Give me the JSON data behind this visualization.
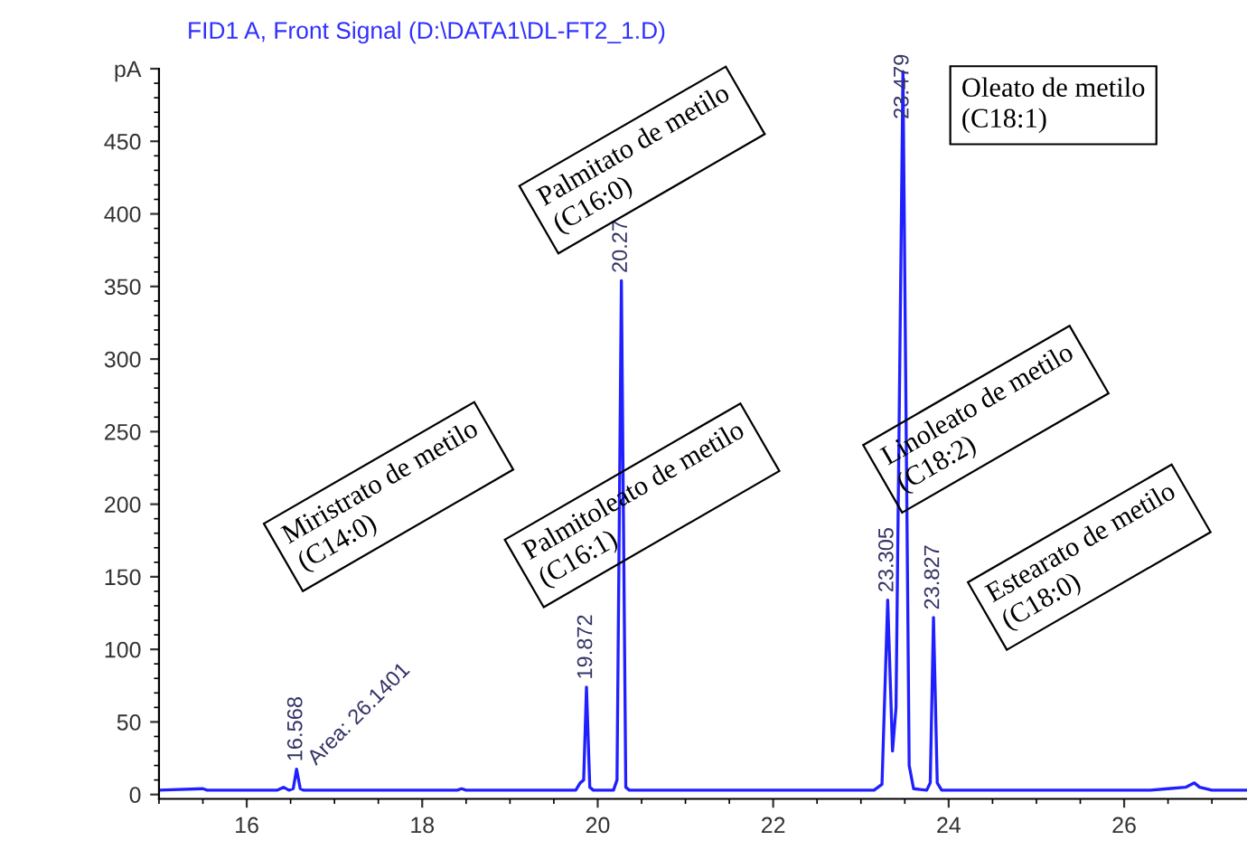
{
  "chart_data": {
    "type": "line",
    "title": "FID1 A, Front Signal (D:\\DATA1\\DL-FT2_1.D)",
    "xlim": [
      15,
      27.4
    ],
    "ylim": [
      -3,
      500
    ],
    "xticks": [
      16,
      18,
      20,
      22,
      24,
      26
    ],
    "yticks": [
      0,
      50,
      100,
      150,
      200,
      250,
      300,
      350,
      400,
      450,
      {
        "value": 500,
        "label": "pA"
      }
    ],
    "grid": false,
    "marker": "none",
    "line_style": "solid",
    "series": [
      {
        "color": "#2020ff",
        "x": [
          15.0,
          15.5,
          15.55,
          15.6,
          16.35,
          16.42,
          16.48,
          16.53,
          16.568,
          16.61,
          16.65,
          18.4,
          18.45,
          18.5,
          19.75,
          19.8,
          19.84,
          19.872,
          19.91,
          19.95,
          20.18,
          20.22,
          20.27,
          20.32,
          20.36,
          23.15,
          23.24,
          23.305,
          23.36,
          23.4,
          23.479,
          23.55,
          23.6,
          23.75,
          23.79,
          23.827,
          23.87,
          23.92,
          26.3,
          26.5,
          26.7,
          26.8,
          26.86,
          27.0,
          27.4
        ],
        "values": [
          3,
          4,
          3,
          3,
          3,
          5,
          3,
          4,
          17.5,
          4,
          3,
          3,
          4,
          3,
          3,
          8,
          10,
          74,
          5,
          3,
          3,
          10,
          354,
          5,
          3,
          3,
          7,
          134,
          30,
          60,
          498,
          20,
          4,
          3,
          8,
          122,
          8,
          3,
          3,
          4,
          5,
          8,
          5,
          3,
          3
        ]
      }
    ],
    "annotations": [
      {
        "text": "16.568",
        "x": 16.568,
        "y": 17.5
      },
      {
        "text": "19.872",
        "x": 19.872,
        "y": 74
      },
      {
        "text": "20.27",
        "x": 20.27,
        "y": 354
      },
      {
        "text": "23.305",
        "x": 23.305,
        "y": 134
      },
      {
        "text": "23.479",
        "x": 23.479,
        "y": 460
      },
      {
        "text": "23.827",
        "x": 23.827,
        "y": 122
      },
      {
        "text": "Area: 26.1401",
        "x": 16.568,
        "y": 17.5
      },
      "Miristrato de metilo\n(C14:0)",
      "Palmitoleato de metilo\n(C16:1)",
      "Palmitato de metilo\n(C16:0)",
      "Linoleato de metilo\n(C18:2)",
      "Oleato de metilo\n(C18:1)",
      "Estearato de metilo\n(C18:0)"
    ]
  }
}
